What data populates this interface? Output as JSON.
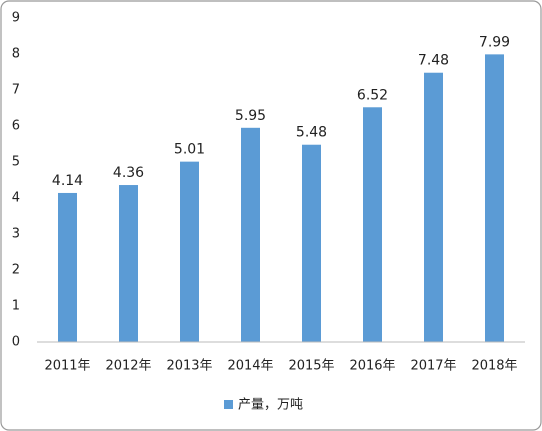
{
  "chart_data": {
    "type": "bar",
    "categories": [
      "2011年",
      "2012年",
      "2013年",
      "2014年",
      "2015年",
      "2016年",
      "2017年",
      "2018年"
    ],
    "series": [
      {
        "name": "产量，万吨",
        "color": "#5b9bd5",
        "values": [
          4.14,
          4.36,
          5.01,
          5.95,
          5.48,
          6.52,
          7.48,
          7.99
        ]
      }
    ],
    "ylim": [
      0,
      9
    ],
    "yticks": [
      0,
      1,
      2,
      3,
      4,
      5,
      6,
      7,
      8,
      9
    ],
    "grid": false,
    "legend": "bottom"
  }
}
